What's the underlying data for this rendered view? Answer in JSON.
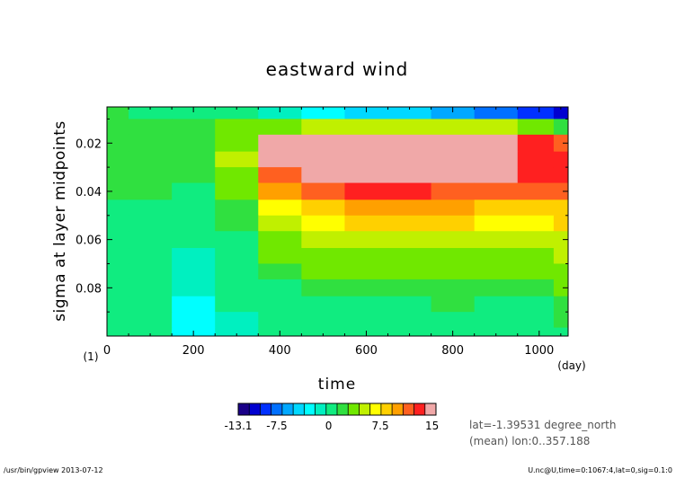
{
  "chart_data": {
    "type": "heatmap",
    "title": "eastward wind",
    "xlabel": "time",
    "ylabel": "sigma at layer midpoints",
    "x_unit": "(day)",
    "y_unit": "(1)",
    "xlim": [
      0,
      1067
    ],
    "ylim": [
      0.1,
      0.005
    ],
    "x_ticks": [
      0,
      200,
      400,
      600,
      800,
      1000
    ],
    "x_tick_labels": [
      "0",
      "200",
      "400",
      "600",
      "800",
      "1000"
    ],
    "y_ticks": [
      0.02,
      0.04,
      0.06,
      0.08
    ],
    "y_tick_labels": [
      "0.02",
      "0.04",
      "0.06",
      "0.08"
    ],
    "sigma_levels": [
      0.007,
      0.013,
      0.02,
      0.027,
      0.033,
      0.04,
      0.047,
      0.053,
      0.06,
      0.067,
      0.073,
      0.08,
      0.087,
      0.093,
      0.1
    ],
    "time_points": [
      0,
      100,
      200,
      300,
      400,
      500,
      600,
      700,
      800,
      900,
      1000,
      1067
    ],
    "values": [
      [
        2,
        1,
        1,
        0,
        -1,
        -3,
        -4,
        -5,
        -6,
        -7,
        -9,
        -10
      ],
      [
        2,
        2,
        2,
        3,
        4,
        5,
        6,
        6,
        6,
        5,
        4,
        2
      ],
      [
        2,
        2,
        2,
        4,
        14,
        14,
        15.5,
        14,
        14,
        14,
        13,
        11
      ],
      [
        2,
        2,
        2,
        5,
        14,
        14,
        14,
        14,
        14,
        14,
        13,
        13
      ],
      [
        2,
        2,
        2,
        4,
        12,
        14,
        14,
        14,
        14,
        14,
        13,
        13
      ],
      [
        2,
        2,
        1,
        3,
        10,
        12,
        13,
        13,
        12,
        12,
        12,
        12
      ],
      [
        1,
        1,
        1,
        2,
        7,
        9,
        10,
        10,
        10,
        9,
        9,
        9
      ],
      [
        1,
        1,
        0,
        2,
        5,
        7,
        8,
        8,
        8,
        7,
        7,
        8
      ],
      [
        1,
        1,
        0,
        1,
        3,
        5,
        5,
        6,
        6,
        5,
        5,
        6
      ],
      [
        1,
        1,
        -1,
        1,
        3,
        4,
        4,
        4,
        4,
        4,
        4,
        5
      ],
      [
        1,
        1,
        -1,
        0,
        2,
        3,
        3,
        3,
        3,
        3,
        3,
        4
      ],
      [
        1,
        0,
        -1,
        0,
        1,
        2,
        2,
        2,
        2,
        2,
        2,
        3
      ],
      [
        1,
        0,
        -2,
        0,
        1,
        1,
        1,
        1,
        2,
        1,
        1,
        2
      ],
      [
        1,
        0,
        -2,
        -1,
        0,
        1,
        1,
        1,
        1,
        1,
        1,
        2
      ],
      [
        1,
        0,
        -2,
        -1,
        0,
        1,
        1,
        1,
        1,
        1,
        1,
        1
      ]
    ],
    "colorbar": {
      "min": -13.1,
      "max": 15.57,
      "tick_labels": [
        "-13.1",
        "-7.5",
        "0",
        "7.5",
        "15"
      ],
      "tick_values": [
        -13.1,
        -7.5,
        0,
        7.5,
        15
      ],
      "colors": [
        "#1a0088",
        "#0000d0",
        "#0030ff",
        "#0070ff",
        "#00a8ff",
        "#00d8ff",
        "#00ffff",
        "#00f0c0",
        "#10ec80",
        "#30e040",
        "#70e800",
        "#c0f000",
        "#ffff00",
        "#ffd000",
        "#ffa000",
        "#ff6020",
        "#ff2020",
        "#f0a8a8"
      ]
    },
    "annotations": [
      "lat=-1.39531 degree_north",
      "(mean) lon:0..357.188"
    ],
    "grid": false
  },
  "footer": {
    "left": "/usr/bin/gpview  2013-07-12",
    "right": "U.nc@U,time=0:1067:4,lat=0,sig=0.1:0"
  }
}
